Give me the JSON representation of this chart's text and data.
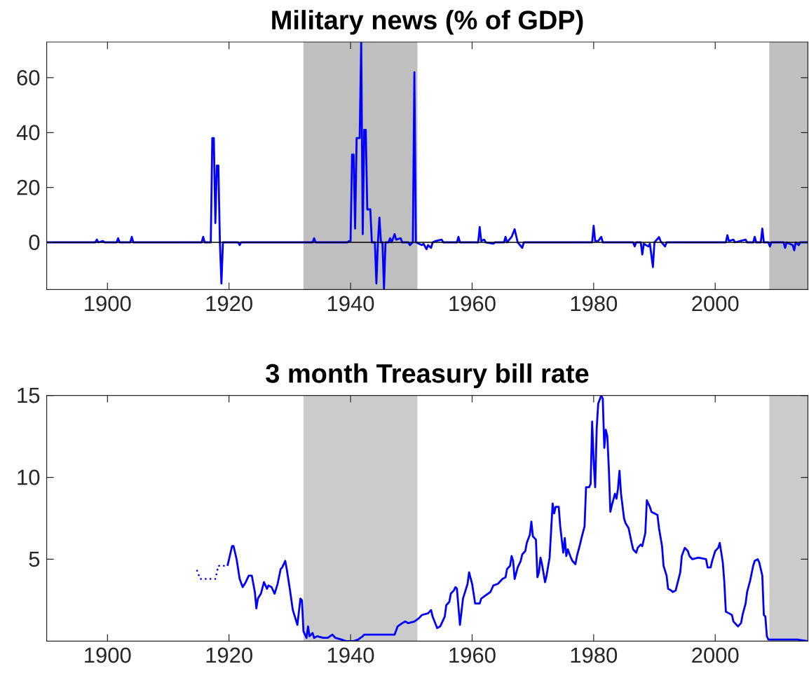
{
  "chart_data": [
    {
      "type": "line",
      "title": "Military news (% of GDP)",
      "color": "#0000ff",
      "x": [
        1890,
        1898,
        1898.25,
        1898.5,
        1899.25,
        1899.5,
        1901.5,
        1901.75,
        1902,
        1903.75,
        1904,
        1904.25,
        1915.5,
        1915.75,
        1916,
        1917,
        1917.25,
        1917.5,
        1917.75,
        1918,
        1918.25,
        1918.5,
        1918.75,
        1919,
        1921.5,
        1921.75,
        1922,
        1933.75,
        1934,
        1934.25,
        1939.5,
        1939.75,
        1940,
        1940.25,
        1940.5,
        1940.75,
        1941,
        1941.5,
        1941.75,
        1942,
        1942.25,
        1942.5,
        1942.75,
        1943.25,
        1943.5,
        1944,
        1944.25,
        1944.5,
        1944.75,
        1945,
        1945.25,
        1945.5,
        1945.75,
        1946.25,
        1946.5,
        1946.75,
        1947.25,
        1947.5,
        1948.25,
        1948.5,
        1949.5,
        1949.75,
        1950.25,
        1950.5,
        1950.75,
        1951.75,
        1952,
        1952.5,
        1952.75,
        1953.25,
        1953.5,
        1954,
        1955,
        1955.25,
        1957.5,
        1957.75,
        1958,
        1961,
        1961.25,
        1961.5,
        1962,
        1962.25,
        1963.5,
        1963.75,
        1965.25,
        1965.5,
        1965.75,
        1966.5,
        1967,
        1967.5,
        1968.25,
        1968.5,
        1979.75,
        1980,
        1980.25,
        1980.75,
        1981.25,
        1981.5,
        1986.5,
        1986.75,
        1987,
        1987.75,
        1988,
        1988.25,
        1989,
        1989.25,
        1989.75,
        1990,
        1990.75,
        1991,
        1991.75,
        1992,
        2001.75,
        2002,
        2002.25,
        2003,
        2003.25,
        2005,
        2005.25,
        2006.25,
        2006.5,
        2006.75,
        2007.5,
        2007.75,
        2008,
        2008.75,
        2009,
        2009.25,
        2011.25,
        2011.5,
        2011.75,
        2012.75,
        2013,
        2013.25,
        2013.75,
        2014,
        2015.25
      ],
      "values": [
        0,
        0,
        1,
        0,
        0.5,
        0,
        0,
        1.5,
        0,
        0,
        2,
        0,
        0,
        2,
        0,
        0,
        38,
        38,
        7,
        28,
        28,
        0,
        -15,
        0,
        0,
        -1,
        0,
        0,
        1.5,
        0,
        0,
        0.5,
        0.5,
        32,
        32,
        5,
        38,
        38,
        73,
        3,
        41,
        41,
        12,
        12,
        0,
        0,
        -15,
        0,
        9,
        0,
        0,
        -17.2,
        0,
        0,
        1.5,
        0,
        3,
        1,
        1.5,
        0,
        0,
        -1,
        0,
        62,
        0,
        -1,
        -0.5,
        -2.5,
        -1,
        -2,
        0,
        0.5,
        1,
        0,
        0,
        2,
        0,
        0,
        5.6,
        0.5,
        1,
        0,
        -0.5,
        0,
        0,
        2,
        0,
        2,
        4.8,
        0,
        -2,
        0,
        0,
        6,
        0.5,
        0.5,
        2,
        0,
        0,
        -1.5,
        0,
        0,
        -4.4,
        -0.5,
        -1.5,
        -0.5,
        -9,
        0,
        1.9,
        0.5,
        -1.5,
        0,
        0,
        2.6,
        0.5,
        1,
        0,
        1,
        0,
        0,
        2,
        0,
        0,
        5,
        0,
        0,
        -1.5,
        0,
        0,
        -2,
        0,
        -1,
        -2.9,
        0,
        -1,
        0,
        0
      ],
      "xlim": [
        1890,
        2015.25
      ],
      "ylim": [
        -17.2,
        73
      ],
      "xticks": [
        1900,
        1920,
        1940,
        1960,
        1980,
        2000
      ],
      "yticks": [
        0,
        20,
        40,
        60
      ],
      "bands": [
        {
          "axis": "x",
          "from": 1932.25,
          "to": 1951,
          "color": "#bfbfbf"
        },
        {
          "axis": "x",
          "from": 2008.9,
          "to": 2015.25,
          "color": "#bfbfbf"
        }
      ],
      "ref_lines": [
        {
          "axis": "y",
          "value": 0,
          "color": "#000000"
        }
      ]
    },
    {
      "type": "line",
      "title": "3 month Treasury bill rate",
      "series": [
        {
          "color": "#0000ff",
          "line_style": "dotted",
          "x": [
            1914.75,
            1915.25,
            1916,
            1917,
            1917.75,
            1918.25,
            1919,
            1919.75
          ],
          "values": [
            4.3,
            3.8,
            3.8,
            3.8,
            3.8,
            4.6,
            4.6,
            4.6
          ]
        },
        {
          "color": "#0000ff",
          "line_style": "solid",
          "x": [
            1919.75,
            1920.5,
            1920.75,
            1921.25,
            1921.75,
            1922.25,
            1922.75,
            1923.25,
            1923.75,
            1924.25,
            1924.5,
            1924.75,
            1925.25,
            1925.75,
            1926.25,
            1926.5,
            1927,
            1927.5,
            1928,
            1928.5,
            1928.75,
            1929.25,
            1929.5,
            1930,
            1930.5,
            1930.75,
            1931.25,
            1931.5,
            1931.75,
            1932,
            1932.25,
            1932.5,
            1932.75,
            1933,
            1933.25,
            1933.75,
            1934,
            1934.5,
            1935.5,
            1936.25,
            1937,
            1937.5,
            1938.5,
            1939.25,
            1940.5,
            1941.25,
            1942,
            1942.25,
            1947.25,
            1947.75,
            1948.5,
            1949,
            1949.5,
            1950.5,
            1951.25,
            1951.75,
            1952.75,
            1953.25,
            1953.5,
            1954.25,
            1954.75,
            1955.5,
            1955.75,
            1956.25,
            1956.5,
            1957,
            1957.25,
            1957.5,
            1958,
            1958.5,
            1958.75,
            1959.25,
            1959.5,
            1960,
            1960.5,
            1961.25,
            1961.5,
            1962.25,
            1963,
            1963.5,
            1964.25,
            1965,
            1965.5,
            1965.75,
            1966.25,
            1966.5,
            1966.75,
            1967,
            1967.5,
            1968,
            1968.25,
            1968.75,
            1969,
            1969.5,
            1969.75,
            1970,
            1970.5,
            1970.75,
            1971,
            1971.25,
            1971.5,
            1972,
            1972.25,
            1972.75,
            1973.25,
            1973.5,
            1973.75,
            1974.25,
            1974.5,
            1975,
            1975.25,
            1975.5,
            1975.75,
            1976.25,
            1976.5,
            1977,
            1977.25,
            1977.75,
            1978,
            1978.5,
            1978.75,
            1979.25,
            1979.5,
            1979.75,
            1980,
            1980.25,
            1980.5,
            1980.75,
            1981.25,
            1981.5,
            1981.75,
            1982,
            1982.25,
            1982.5,
            1982.75,
            1983,
            1983.5,
            1983.75,
            1984,
            1984.25,
            1984.5,
            1985,
            1985.25,
            1985.75,
            1986.25,
            1986.5,
            1987,
            1987.25,
            1987.75,
            1988,
            1988.5,
            1988.75,
            1989.25,
            1989.5,
            1990,
            1990.5,
            1990.75,
            1991.25,
            1991.5,
            1992,
            1992.25,
            1992.75,
            1993,
            1993.5,
            1994.25,
            1994.5,
            1995,
            1995.5,
            1995.75,
            1996.25,
            1997.25,
            1998.5,
            1998.75,
            1999.25,
            1999.5,
            2000,
            2000.5,
            2000.75,
            2001.25,
            2001.5,
            2001.75,
            2002.25,
            2002.75,
            2003,
            2003.5,
            2003.75,
            2004.25,
            2004.5,
            2005,
            2005.25,
            2005.75,
            2006.25,
            2006.5,
            2007,
            2007.25,
            2007.75,
            2008,
            2008.25,
            2008.5,
            2008.75,
            2010.5,
            2012,
            2013.5,
            2015.25
          ],
          "values": [
            4.6,
            5.8,
            5.8,
            5.0,
            3.8,
            3.3,
            3.6,
            4.0,
            4.0,
            3.0,
            2.0,
            2.6,
            2.9,
            3.6,
            3.2,
            3.4,
            3.3,
            2.9,
            3.5,
            4.4,
            4.5,
            4.9,
            4.4,
            3.2,
            1.9,
            1.6,
            1.0,
            1.8,
            2.6,
            2.5,
            0.6,
            0.4,
            0.2,
            0.9,
            0.3,
            0.5,
            0.2,
            0.3,
            0.2,
            0.2,
            0.4,
            0.2,
            0.1,
            0,
            0,
            0.1,
            0.3,
            0.4,
            0.4,
            0.9,
            1.1,
            1.2,
            1.1,
            1.2,
            1.4,
            1.6,
            1.7,
            1.9,
            1.5,
            0.8,
            0.9,
            1.5,
            2.2,
            2.4,
            2.9,
            3.1,
            3.3,
            3.2,
            1.0,
            2.6,
            2.9,
            3.5,
            4.2,
            3.5,
            2.3,
            2.3,
            2.6,
            2.8,
            3.0,
            3.4,
            3.5,
            3.8,
            3.9,
            4.4,
            4.6,
            5.2,
            4.9,
            3.8,
            4.5,
            4.9,
            5.3,
            5.5,
            6.0,
            6.5,
            7.3,
            6.4,
            6.2,
            3.9,
            4.2,
            5.1,
            4.7,
            3.6,
            4.0,
            5.1,
            8.4,
            7.8,
            8.2,
            8.2,
            7.0,
            5.4,
            6.3,
            5.2,
            5.6,
            5.1,
            4.9,
            4.7,
            5.2,
            5.9,
            6.3,
            7.0,
            9.4,
            9.4,
            9.6,
            13.4,
            11.0,
            9.4,
            13.0,
            14.5,
            15,
            14.8,
            11.8,
            12.9,
            12.5,
            10.5,
            7.9,
            8.3,
            9.0,
            8.7,
            9.3,
            10.4,
            9.0,
            7.5,
            7.2,
            6.9,
            6.0,
            5.6,
            5.4,
            5.7,
            5.9,
            5.8,
            6.6,
            8.6,
            8.2,
            7.9,
            7.8,
            7.7,
            6.9,
            5.8,
            4.6,
            4.0,
            3.2,
            3.1,
            3.0,
            3.1,
            4.2,
            5.2,
            5.7,
            5.5,
            5.2,
            5.0,
            5.1,
            5.0,
            4.5,
            4.5,
            4.9,
            5.5,
            5.7,
            6.0,
            4.8,
            3.6,
            1.8,
            1.7,
            1.6,
            1.2,
            1.0,
            0.9,
            1.1,
            1.6,
            2.3,
            3.0,
            3.7,
            4.6,
            4.9,
            5.0,
            4.8,
            4.0,
            1.6,
            1.5,
            0.3,
            0.1,
            0.1,
            0.1,
            0.1,
            0
          ]
        }
      ],
      "xlim": [
        1890,
        2015.25
      ],
      "ylim": [
        0,
        15
      ],
      "xticks": [
        1900,
        1920,
        1940,
        1960,
        1980,
        2000
      ],
      "yticks": [
        5,
        10,
        15
      ],
      "bands": [
        {
          "axis": "x",
          "from": 1932.25,
          "to": 1951,
          "color": "#cbcbcb"
        },
        {
          "axis": "x",
          "from": 2008.9,
          "to": 2015.25,
          "color": "#cbcbcb"
        }
      ]
    }
  ]
}
